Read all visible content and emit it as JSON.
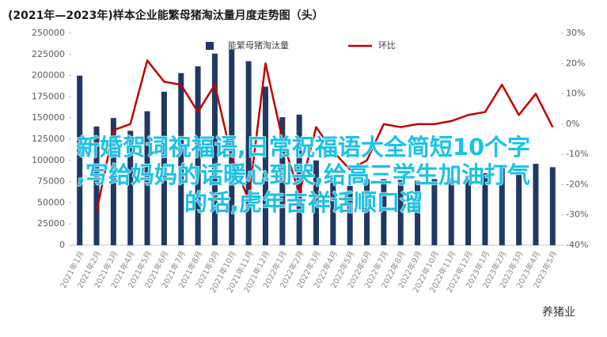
{
  "chart_data": {
    "type": "bar_line",
    "title": "(2021年—2023年)样本企业能繁母猪淘汰量月度走势图（头）",
    "categories": [
      "2021年1月",
      "2021年2月",
      "2021年3月",
      "2021年4月",
      "2021年5月",
      "2021年6月",
      "2021年7月",
      "2021年8月",
      "2021年9月",
      "2021年10月",
      "2021年11月",
      "2021年12月",
      "2022年1月",
      "2022年2月",
      "2022年3月",
      "2022年4月",
      "2022年5月",
      "2022年6月",
      "2022年7月",
      "2022年8月",
      "2022年9月",
      "2022年10月",
      "2022年11月",
      "2022年12月",
      "2023年1月",
      "2023年2月",
      "2023年3月",
      "2023年4月",
      "2023年5月"
    ],
    "series": [
      {
        "name": "能繁母猪淘汰量",
        "color": "#1f3864",
        "values": [
          200000,
          140000,
          150000,
          135000,
          158000,
          181000,
          203000,
          211000,
          226000,
          231000,
          217000,
          187000,
          151000,
          154000,
          100000,
          82000,
          70000,
          78000,
          78000,
          77000,
          76000,
          78000,
          80000,
          82000,
          85000,
          95000,
          88000,
          96000,
          92000
        ]
      },
      {
        "name": "环比",
        "color": "#c00000",
        "axis": "y2",
        "values": [
          null,
          -29,
          -2,
          0,
          21,
          14,
          13,
          4,
          13,
          -11,
          -25,
          20,
          -5,
          -23,
          -1,
          -9,
          -15,
          -12,
          0,
          -1,
          0,
          0,
          1,
          3,
          4,
          13,
          3,
          10,
          -1
        ]
      }
    ],
    "ylim": [
      0,
      250000
    ],
    "yticks": [
      0,
      25000,
      50000,
      75000,
      100000,
      125000,
      150000,
      175000,
      200000,
      225000,
      250000
    ],
    "y2lim": [
      -40,
      30
    ],
    "y2ticks": [
      {
        "value": -40,
        "label": "-40%"
      },
      {
        "value": -30,
        "label": "-30%"
      },
      {
        "value": -20,
        "label": "-20%"
      },
      {
        "value": -10,
        "label": "-10%"
      },
      {
        "value": 0,
        "label": "0%"
      },
      {
        "value": 10,
        "label": "10%"
      },
      {
        "value": 20,
        "label": "20%"
      },
      {
        "value": 30,
        "label": "30%"
      }
    ]
  },
  "overlay_text": [
    "新婚贺词祝福语,日常祝福语大全简短10个字",
    ",写给妈妈的话暖心到哭,给高三学生加油打气",
    "的话,虎年吉祥话顺口溜"
  ],
  "watermark": "养猪业"
}
